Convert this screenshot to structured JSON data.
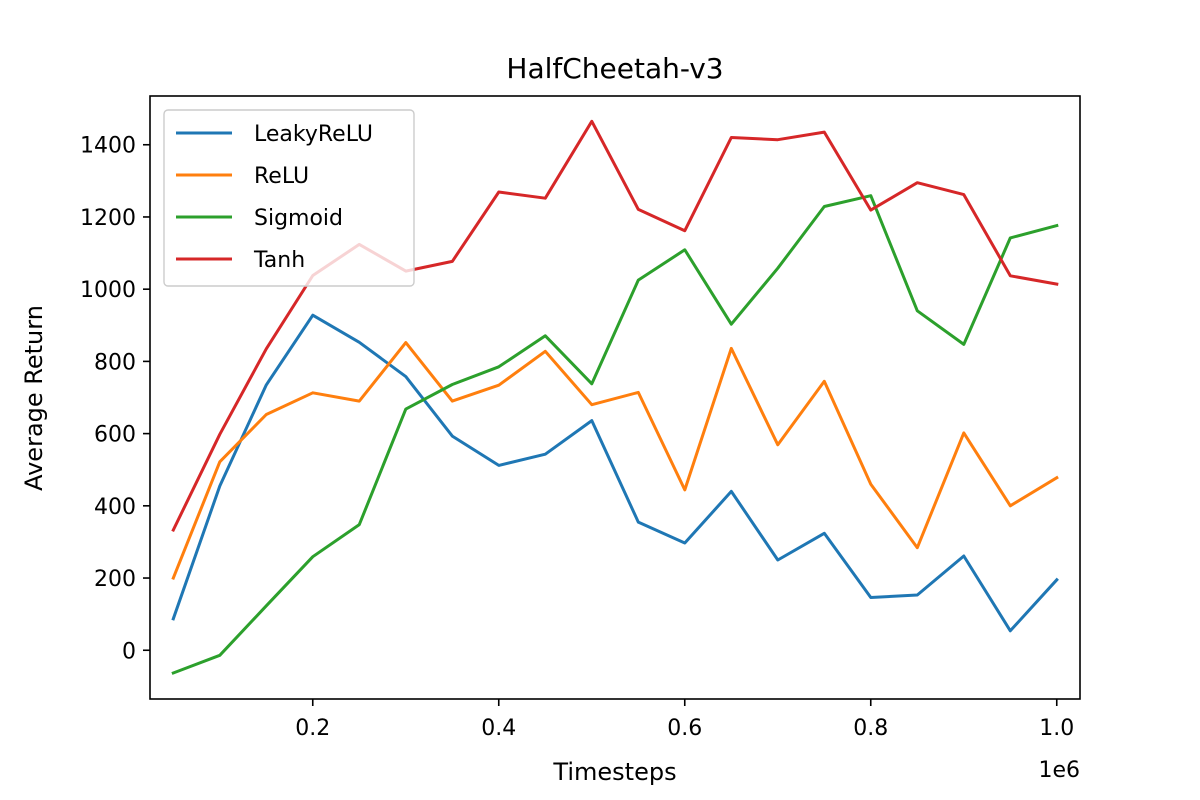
{
  "chart_data": {
    "type": "line",
    "title": "HalfCheetah-v3",
    "xlabel": "Timesteps",
    "ylabel": "Average Return",
    "x_offset_label": "1e6",
    "x_scale": 1000000,
    "xlim": [
      0.025,
      1.025
    ],
    "ylim": [
      -135,
      1535
    ],
    "xticks": [
      0.2,
      0.4,
      0.6,
      0.8,
      1.0
    ],
    "xtick_labels": [
      "0.2",
      "0.4",
      "0.6",
      "0.8",
      "1.0"
    ],
    "yticks": [
      0,
      200,
      400,
      600,
      800,
      1000,
      1200,
      1400
    ],
    "ytick_labels": [
      "0",
      "200",
      "400",
      "600",
      "800",
      "1000",
      "1200",
      "1400"
    ],
    "grid": false,
    "legend_position": "upper-left",
    "x": [
      0.05,
      0.1,
      0.15,
      0.2,
      0.25,
      0.3,
      0.35,
      0.4,
      0.45,
      0.5,
      0.55,
      0.6,
      0.65,
      0.7,
      0.75,
      0.8,
      0.85,
      0.9,
      0.95,
      1.0
    ],
    "series": [
      {
        "name": "LeakyReLU",
        "color": "#1f77b4",
        "values": [
          87,
          455,
          735,
          928,
          853,
          758,
          593,
          512,
          543,
          636,
          355,
          297,
          440,
          250,
          324,
          146,
          153,
          261,
          54,
          195
        ]
      },
      {
        "name": "ReLU",
        "color": "#ff7f0e",
        "values": [
          200,
          522,
          653,
          713,
          690,
          852,
          690,
          734,
          828,
          680,
          714,
          444,
          836,
          569,
          745,
          460,
          284,
          602,
          400,
          478
        ]
      },
      {
        "name": "Sigmoid",
        "color": "#2ca02c",
        "values": [
          -63,
          -14,
          123,
          259,
          348,
          668,
          736,
          785,
          871,
          738,
          1025,
          1109,
          903,
          1058,
          1229,
          1259,
          940,
          847,
          1142,
          1176
        ]
      },
      {
        "name": "Tanh",
        "color": "#d62728",
        "values": [
          333,
          598,
          835,
          1038,
          1124,
          1050,
          1077,
          1269,
          1252,
          1465,
          1221,
          1162,
          1420,
          1414,
          1435,
          1219,
          1295,
          1262,
          1037,
          1014
        ]
      }
    ]
  }
}
